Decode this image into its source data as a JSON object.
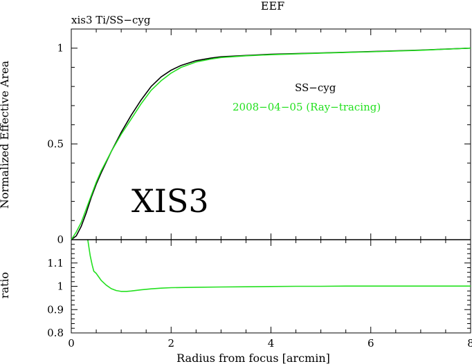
{
  "chart_data": [
    {
      "type": "line",
      "title": "EEF",
      "subtitle": "xis3 Ti/SS−cyg",
      "annotation": "XIS3",
      "ylabel": "Normalized Effective Area",
      "xlim": [
        0,
        8
      ],
      "ylim": [
        0,
        1.1
      ],
      "yticks": [
        0,
        0.5,
        1
      ],
      "ytick_labels": [
        "0",
        "0.5",
        "1"
      ],
      "legend": [
        "SS−cyg",
        "2008−04−05 (Ray−tracing)"
      ],
      "legend_placement": "center-right",
      "grid": false,
      "series": [
        {
          "name": "SS−cyg",
          "color": "#000000",
          "x": [
            0,
            0.1,
            0.2,
            0.3,
            0.4,
            0.5,
            0.6,
            0.8,
            1.0,
            1.2,
            1.4,
            1.6,
            1.8,
            2.0,
            2.2,
            2.5,
            2.8,
            3.0,
            3.5,
            4.0,
            5.0,
            6.0,
            7.0,
            8.0
          ],
          "y": [
            0,
            0.02,
            0.07,
            0.14,
            0.22,
            0.29,
            0.35,
            0.46,
            0.56,
            0.65,
            0.73,
            0.8,
            0.85,
            0.885,
            0.91,
            0.935,
            0.948,
            0.955,
            0.962,
            0.968,
            0.975,
            0.982,
            0.99,
            1.0
          ]
        },
        {
          "name": "2008−04−05 (Ray−tracing)",
          "color": "#22e01e",
          "x": [
            0,
            0.1,
            0.2,
            0.3,
            0.4,
            0.5,
            0.6,
            0.8,
            1.0,
            1.2,
            1.4,
            1.6,
            1.8,
            2.0,
            2.2,
            2.5,
            2.8,
            3.0,
            3.5,
            4.0,
            5.0,
            6.0,
            7.0,
            8.0
          ],
          "y": [
            0,
            0.04,
            0.09,
            0.16,
            0.23,
            0.3,
            0.36,
            0.46,
            0.55,
            0.63,
            0.71,
            0.78,
            0.83,
            0.87,
            0.9,
            0.928,
            0.943,
            0.951,
            0.96,
            0.966,
            0.974,
            0.981,
            0.989,
            1.0
          ]
        }
      ]
    },
    {
      "type": "line",
      "xlabel": "Radius from focus [arcmin]",
      "ylabel": "ratio",
      "xlim": [
        0,
        8
      ],
      "ylim": [
        0.8,
        1.2
      ],
      "xticks": [
        0,
        2,
        4,
        6,
        8
      ],
      "xtick_labels": [
        "0",
        "2",
        "4",
        "6",
        "8"
      ],
      "yticks": [
        0.8,
        0.9,
        1,
        1.1
      ],
      "ytick_labels": [
        "0.8",
        "0.9",
        "1",
        "1.1"
      ],
      "grid": false,
      "series": [
        {
          "color": "#22e01e",
          "x": [
            0.33,
            0.38,
            0.42,
            0.45,
            0.5,
            0.55,
            0.6,
            0.7,
            0.8,
            0.9,
            1.0,
            1.1,
            1.2,
            1.4,
            1.6,
            1.8,
            2.0,
            2.5,
            3.0,
            3.5,
            4.0,
            4.5,
            5.0,
            5.5,
            6.0,
            6.5,
            7.0,
            7.5,
            8.0
          ],
          "y": [
            1.2,
            1.13,
            1.09,
            1.065,
            1.055,
            1.04,
            1.025,
            1.005,
            0.99,
            0.982,
            0.978,
            0.978,
            0.98,
            0.985,
            0.989,
            0.992,
            0.994,
            0.996,
            0.997,
            0.998,
            0.999,
            1.0,
            1.0,
            1.001,
            1.001,
            1.001,
            1.001,
            1.001,
            1.001
          ]
        }
      ]
    }
  ]
}
